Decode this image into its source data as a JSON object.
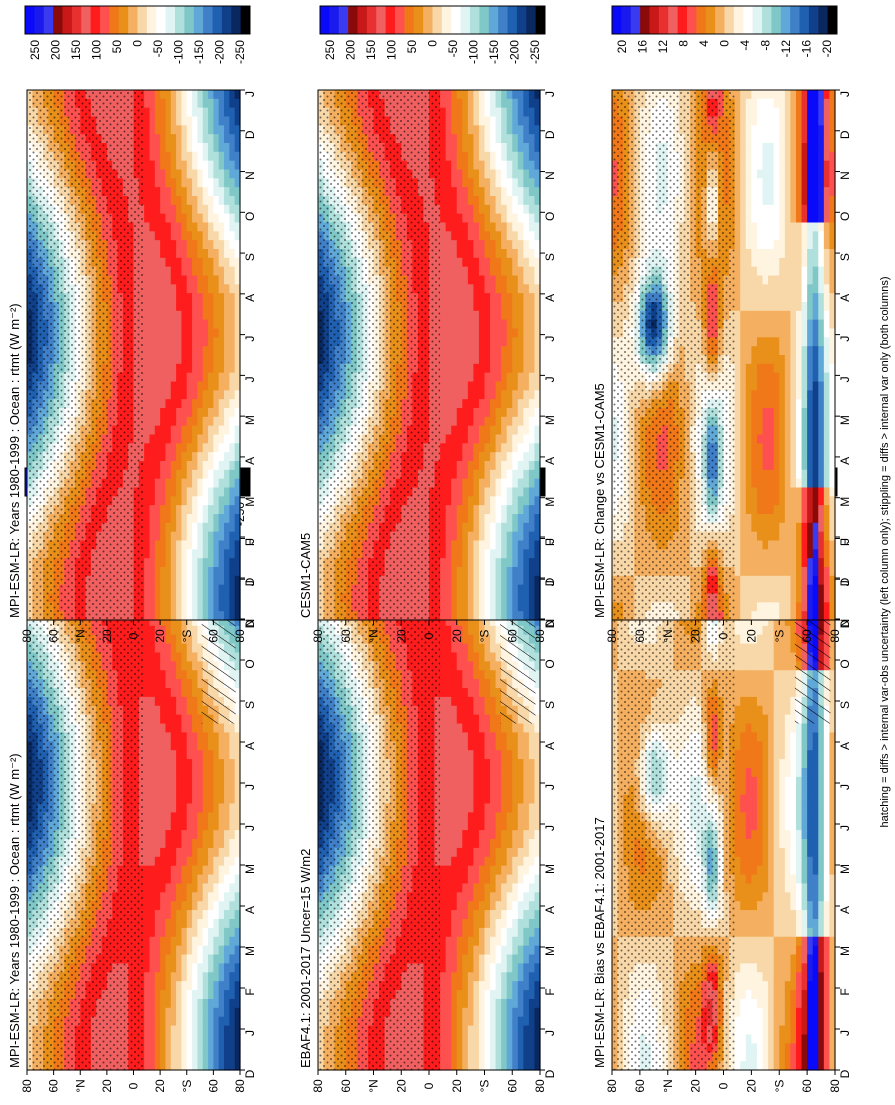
{
  "caption": "hatching = diffs > internal var-obs uncertainty (left column only); stippling = diffs > internal var only (both columns)",
  "month_labels": [
    "D",
    "J",
    "F",
    "M",
    "A",
    "M",
    "J",
    "J",
    "A",
    "S",
    "O",
    "N",
    "D",
    "J"
  ],
  "lat_labels": [
    "80",
    "60",
    "°N",
    "20",
    "0",
    "20",
    "°S",
    "60",
    "80"
  ],
  "scales": {
    "mean": {
      "labels": [
        "250",
        "200",
        "150",
        "100",
        "50",
        "0",
        "-50",
        "-100",
        "-150",
        "-200",
        "-250"
      ],
      "colors": [
        "#0a0afa",
        "#1a1aee",
        "#3a3af0",
        "#8a0a0a",
        "#c81818",
        "#e83030",
        "#f06060",
        "#ff1c1c",
        "#ff5050",
        "#f07818",
        "#e8901a",
        "#f4b060",
        "#f8d8a8",
        "#fff4e0",
        "#ffffff",
        "#e0f4f4",
        "#b0e0dc",
        "#80c8c8",
        "#60a8d8",
        "#4080c8",
        "#2060b0",
        "#10408a",
        "#0a2860",
        "#000000"
      ]
    },
    "diff": {
      "labels": [
        "20",
        "16",
        "12",
        "8",
        "4",
        "0",
        "-4",
        "-8",
        "-12",
        "-16",
        "-20"
      ],
      "colors": [
        "#0a0afa",
        "#1a1aee",
        "#3a3af0",
        "#8a0a0a",
        "#c81818",
        "#e83030",
        "#f06060",
        "#ff1c1c",
        "#ff5050",
        "#f07818",
        "#e8901a",
        "#f4b060",
        "#f8d8a8",
        "#fff4e0",
        "#ffffff",
        "#e0f4f4",
        "#b0e0dc",
        "#80c8c8",
        "#60a8d8",
        "#4080c8",
        "#2060b0",
        "#10408a",
        "#0a2860",
        "#000000"
      ]
    }
  },
  "chart_data": [
    {
      "type": "heatmap",
      "title": "MPI-ESM-LR: Years 1980-1999 : Ocean : rtmt (W m⁻²)",
      "quantity": "mean",
      "scale": "mean",
      "hatching": true,
      "stippling": true
    },
    {
      "type": "heatmap",
      "title": "MPI-ESM-LR: Years 1980-1999 : Ocean : rtmt (W m⁻²)",
      "quantity": "mean",
      "scale": "mean",
      "hatching": false,
      "stippling": true
    },
    {
      "type": "heatmap",
      "title": "EBAF4.1: 2001-2017 Uncer=15 W/m2",
      "quantity": "mean",
      "scale": "mean",
      "hatching": true,
      "stippling": true
    },
    {
      "type": "heatmap",
      "title": "CESM1-CAM5",
      "quantity": "mean",
      "scale": "mean",
      "hatching": false,
      "stippling": true
    },
    {
      "type": "heatmap",
      "title": "MPI-ESM-LR: Bias vs EBAF4.1: 2001-2017",
      "quantity": "bias",
      "scale": "diff",
      "hatching": true,
      "stippling": true
    },
    {
      "type": "heatmap",
      "title": "MPI-ESM-LR: Change vs CESM1-CAM5",
      "quantity": "change",
      "scale": "diff",
      "hatching": false,
      "stippling": true
    }
  ]
}
